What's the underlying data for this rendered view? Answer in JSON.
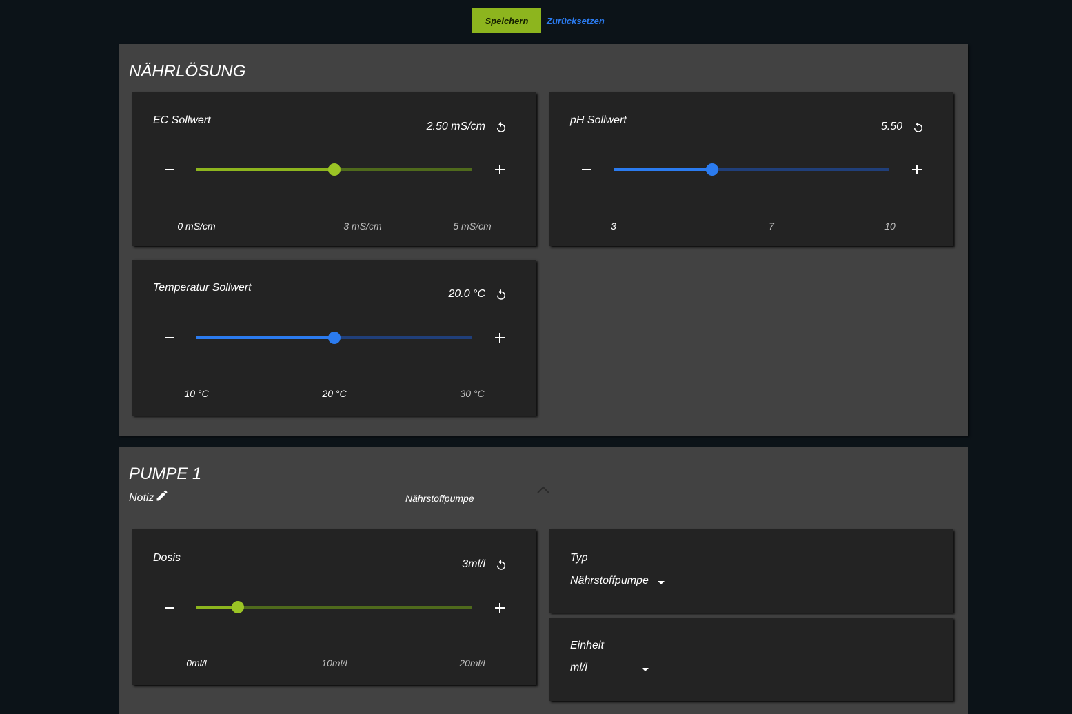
{
  "actions": {
    "save": "Speichern",
    "reset": "Zurücksetzen"
  },
  "colors": {
    "accent_green": "#8db51e",
    "accent_blue": "#2b7bef",
    "background": "#0c1318",
    "panel": "#424242",
    "card": "#232323"
  },
  "naehrloesung": {
    "title": "NÄHRLÖSUNG",
    "ec": {
      "label": "EC Sollwert",
      "value": "2.50 mS/cm",
      "fraction": 0.5,
      "ticks": [
        {
          "label": "0 mS/cm"
        },
        {
          "label": "3 mS/cm"
        },
        {
          "label": "5 mS/cm"
        }
      ]
    },
    "ph": {
      "label": "pH Sollwert",
      "value": "5.50",
      "fraction": 0.357,
      "ticks": [
        {
          "label": "3"
        },
        {
          "label": "7"
        },
        {
          "label": "10"
        }
      ]
    },
    "temp": {
      "label": "Temperatur Sollwert",
      "value": "20.0 °C",
      "fraction": 0.5,
      "ticks": [
        {
          "label": "10 °C"
        },
        {
          "label": "20 °C"
        },
        {
          "label": "30 °C"
        }
      ]
    }
  },
  "pumpe1": {
    "title": "PUMPE 1",
    "note_label": "Notiz",
    "note_value": "Nährstoffpumpe",
    "dosis": {
      "label": "Dosis",
      "value": "3ml/l",
      "fraction": 0.15,
      "ticks": [
        {
          "label": "0ml/l"
        },
        {
          "label": "10ml/l"
        },
        {
          "label": "20ml/l"
        }
      ]
    },
    "typ": {
      "label": "Typ",
      "selected": "Nährstoffpumpe"
    },
    "einheit": {
      "label": "Einheit",
      "selected": "ml/l"
    }
  },
  "icons": [
    "reset-icon",
    "minus-icon",
    "plus-icon",
    "pencil-icon",
    "chevron-up-icon",
    "caret-down-icon"
  ]
}
